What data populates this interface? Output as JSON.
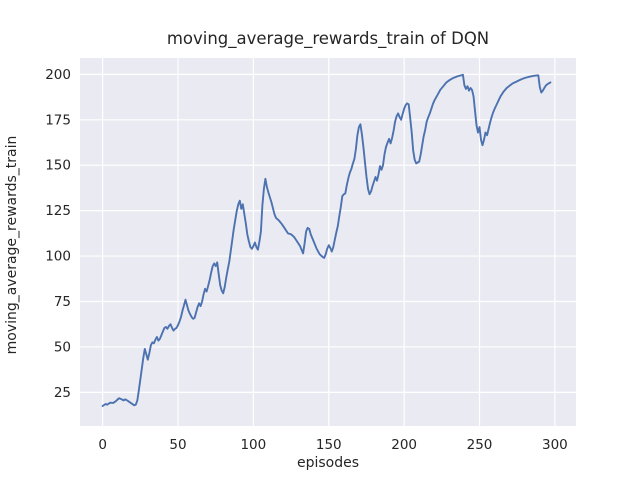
{
  "chart_data": {
    "type": "line",
    "title": "moving_average_rewards_train of DQN",
    "xlabel": "episodes",
    "ylabel": "moving_average_rewards_train",
    "xticks": [
      0,
      50,
      100,
      150,
      200,
      250,
      300
    ],
    "yticks": [
      25,
      50,
      75,
      100,
      125,
      150,
      175,
      200
    ],
    "xlim": [
      -15,
      314
    ],
    "ylim": [
      6.5,
      209
    ],
    "grid": true,
    "legend_position": "none",
    "style": "seaborn-darkgrid",
    "colors": {
      "line": "#4c72b0",
      "axes_background": "#eaeaf2",
      "figure_background": "#ffffff",
      "gridline": "#ffffff",
      "text": "#262626"
    },
    "series": [
      {
        "name": "moving_average_rewards_train",
        "points": [
          [
            0,
            17.5
          ],
          [
            2,
            18.6
          ],
          [
            3,
            18.2
          ],
          [
            5,
            19.3
          ],
          [
            7,
            19.2
          ],
          [
            9,
            20.3
          ],
          [
            10,
            21.2
          ],
          [
            11,
            21.8
          ],
          [
            13,
            21.0
          ],
          [
            14,
            20.6
          ],
          [
            15,
            21.2
          ],
          [
            17,
            20.2
          ],
          [
            19,
            19.0
          ],
          [
            21,
            17.9
          ],
          [
            22,
            18.3
          ],
          [
            23,
            20.5
          ],
          [
            24,
            26
          ],
          [
            25,
            32
          ],
          [
            26,
            38
          ],
          [
            27,
            44
          ],
          [
            28,
            48.9
          ],
          [
            29,
            46
          ],
          [
            30,
            43
          ],
          [
            31,
            46.5
          ],
          [
            32,
            51
          ],
          [
            33,
            52.5
          ],
          [
            34,
            52
          ],
          [
            35,
            54
          ],
          [
            36,
            55.5
          ],
          [
            37,
            53.5
          ],
          [
            38,
            54.5
          ],
          [
            39,
            56.5
          ],
          [
            40,
            58.5
          ],
          [
            41,
            60.5
          ],
          [
            42,
            61
          ],
          [
            43,
            60
          ],
          [
            44,
            61.5
          ],
          [
            45,
            62.5
          ],
          [
            46,
            60.5
          ],
          [
            47,
            59
          ],
          [
            48,
            60
          ],
          [
            49,
            60.5
          ],
          [
            50,
            62
          ],
          [
            51,
            64
          ],
          [
            52,
            66.5
          ],
          [
            53,
            70
          ],
          [
            54,
            73
          ],
          [
            55,
            76
          ],
          [
            56,
            73
          ],
          [
            57,
            70
          ],
          [
            58,
            68
          ],
          [
            59,
            66.5
          ],
          [
            60,
            65.5
          ],
          [
            61,
            66
          ],
          [
            62,
            69
          ],
          [
            63,
            72
          ],
          [
            64,
            74
          ],
          [
            65,
            72.5
          ],
          [
            66,
            75
          ],
          [
            67,
            79
          ],
          [
            68,
            82
          ],
          [
            69,
            80.5
          ],
          [
            70,
            83.5
          ],
          [
            71,
            87
          ],
          [
            72,
            91
          ],
          [
            73,
            94.5
          ],
          [
            74,
            96
          ],
          [
            75,
            94.5
          ],
          [
            76,
            96.5
          ],
          [
            77,
            90
          ],
          [
            78,
            84
          ],
          [
            79,
            81
          ],
          [
            80,
            79.5
          ],
          [
            81,
            83
          ],
          [
            82,
            88
          ],
          [
            83,
            92.5
          ],
          [
            84,
            97
          ],
          [
            85,
            103
          ],
          [
            86,
            109
          ],
          [
            87,
            115
          ],
          [
            88,
            120
          ],
          [
            89,
            125
          ],
          [
            90,
            128.5
          ],
          [
            91,
            130.5
          ],
          [
            92,
            126
          ],
          [
            93,
            128.5
          ],
          [
            95,
            118
          ],
          [
            96,
            112
          ],
          [
            97,
            108
          ],
          [
            98,
            105
          ],
          [
            99,
            104
          ],
          [
            100,
            105.5
          ],
          [
            101,
            107.5
          ],
          [
            102,
            105
          ],
          [
            103,
            103.5
          ],
          [
            104,
            108
          ],
          [
            105,
            113.5
          ],
          [
            106,
            128
          ],
          [
            107,
            137
          ],
          [
            108,
            142.5
          ],
          [
            109,
            138
          ],
          [
            110,
            135
          ],
          [
            112,
            129.5
          ],
          [
            114,
            123
          ],
          [
            115,
            121
          ],
          [
            117,
            119.5
          ],
          [
            119,
            117.5
          ],
          [
            121,
            115
          ],
          [
            123,
            112.5
          ],
          [
            125,
            112
          ],
          [
            127,
            110.5
          ],
          [
            129,
            108
          ],
          [
            131,
            105.5
          ],
          [
            132,
            103.5
          ],
          [
            133,
            101.5
          ],
          [
            134,
            107
          ],
          [
            135,
            113.5
          ],
          [
            136,
            115.5
          ],
          [
            137,
            115
          ],
          [
            138,
            112
          ],
          [
            140,
            108
          ],
          [
            142,
            104
          ],
          [
            144,
            101
          ],
          [
            146,
            99.5
          ],
          [
            147,
            99
          ],
          [
            148,
            101
          ],
          [
            149,
            104
          ],
          [
            150,
            106
          ],
          [
            151,
            104.5
          ],
          [
            152,
            102.5
          ],
          [
            153,
            105
          ],
          [
            154,
            109
          ],
          [
            155,
            113
          ],
          [
            156,
            116.5
          ],
          [
            157,
            122
          ],
          [
            158,
            127
          ],
          [
            159,
            133
          ],
          [
            160,
            134
          ],
          [
            161,
            134.5
          ],
          [
            162,
            139
          ],
          [
            163,
            143
          ],
          [
            164,
            146
          ],
          [
            165,
            148
          ],
          [
            166,
            151
          ],
          [
            167,
            153.5
          ],
          [
            168,
            159
          ],
          [
            169,
            166.5
          ],
          [
            170,
            171
          ],
          [
            171,
            172.5
          ],
          [
            172,
            167
          ],
          [
            173,
            160
          ],
          [
            174,
            152
          ],
          [
            175,
            144
          ],
          [
            176,
            137
          ],
          [
            177,
            134
          ],
          [
            178,
            135.5
          ],
          [
            179,
            138.5
          ],
          [
            180,
            141
          ],
          [
            181,
            143.5
          ],
          [
            182,
            141.5
          ],
          [
            183,
            145
          ],
          [
            184,
            149.5
          ],
          [
            185,
            147.5
          ],
          [
            186,
            150
          ],
          [
            187,
            156
          ],
          [
            188,
            160
          ],
          [
            189,
            162.5
          ],
          [
            190,
            164.5
          ],
          [
            191,
            162
          ],
          [
            192,
            165
          ],
          [
            193,
            169
          ],
          [
            194,
            174
          ],
          [
            195,
            177
          ],
          [
            196,
            178.5
          ],
          [
            197,
            176.5
          ],
          [
            198,
            175
          ],
          [
            199,
            178
          ],
          [
            200,
            181
          ],
          [
            201,
            183
          ],
          [
            202,
            184
          ],
          [
            203,
            183.5
          ],
          [
            204,
            176
          ],
          [
            205,
            168
          ],
          [
            206,
            158
          ],
          [
            207,
            153
          ],
          [
            208,
            151
          ],
          [
            209,
            151.5
          ],
          [
            210,
            152
          ],
          [
            211,
            156
          ],
          [
            212,
            161
          ],
          [
            213,
            166
          ],
          [
            214,
            169.5
          ],
          [
            215,
            174
          ],
          [
            216,
            176.5
          ],
          [
            217,
            178.5
          ],
          [
            218,
            181
          ],
          [
            219,
            183.5
          ],
          [
            220,
            185.5
          ],
          [
            222,
            188.5
          ],
          [
            224,
            191.5
          ],
          [
            226,
            193.5
          ],
          [
            228,
            195.5
          ],
          [
            230,
            196.8
          ],
          [
            232,
            197.8
          ],
          [
            234,
            198.5
          ],
          [
            236,
            199.1
          ],
          [
            238,
            199.5
          ],
          [
            239,
            199.8
          ],
          [
            240,
            194
          ],
          [
            241,
            192
          ],
          [
            242,
            193.5
          ],
          [
            243,
            191
          ],
          [
            244,
            192.5
          ],
          [
            245,
            191.5
          ],
          [
            246,
            188
          ],
          [
            247,
            180
          ],
          [
            248,
            172
          ],
          [
            249,
            168
          ],
          [
            250,
            171
          ],
          [
            251,
            164
          ],
          [
            252,
            161
          ],
          [
            253,
            164
          ],
          [
            254,
            168
          ],
          [
            255,
            166.5
          ],
          [
            256,
            170
          ],
          [
            257,
            173.5
          ],
          [
            258,
            176.5
          ],
          [
            259,
            179
          ],
          [
            260,
            181
          ],
          [
            262,
            184.5
          ],
          [
            264,
            188
          ],
          [
            266,
            190.5
          ],
          [
            268,
            192.5
          ],
          [
            270,
            193.8
          ],
          [
            272,
            195
          ],
          [
            274,
            195.8
          ],
          [
            276,
            196.6
          ],
          [
            278,
            197.4
          ],
          [
            280,
            198
          ],
          [
            282,
            198.5
          ],
          [
            284,
            198.9
          ],
          [
            286,
            199.2
          ],
          [
            288,
            199.4
          ],
          [
            289,
            199.5
          ],
          [
            290,
            193
          ],
          [
            291,
            190
          ],
          [
            292,
            191
          ],
          [
            293,
            192.5
          ],
          [
            294,
            193.8
          ],
          [
            295,
            194.6
          ],
          [
            297,
            195.6
          ]
        ]
      }
    ]
  }
}
